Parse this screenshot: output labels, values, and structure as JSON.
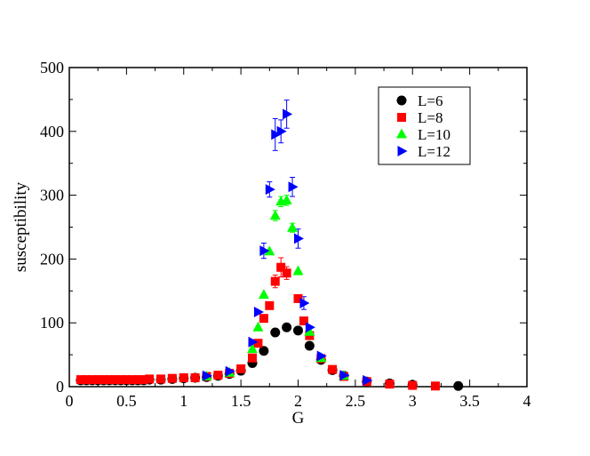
{
  "chart_data": {
    "type": "scatter",
    "title": "",
    "xlabel": "G",
    "ylabel": "susceptibility",
    "xlim": [
      0,
      4
    ],
    "ylim": [
      0,
      500
    ],
    "xticks": [
      0,
      0.5,
      1,
      1.5,
      2,
      2.5,
      3,
      3.5,
      4
    ],
    "yticks": [
      0,
      100,
      200,
      300,
      400,
      500
    ],
    "xtick_labels": [
      "0",
      "0.5",
      "1",
      "1.5",
      "2",
      "2.5",
      "3",
      "3.5",
      "4"
    ],
    "ytick_labels": [
      "0",
      "100",
      "200",
      "300",
      "400",
      "500"
    ],
    "grid": false,
    "legend_position": "top-right",
    "series": [
      {
        "name": "L=6",
        "marker": "circle",
        "color": "#000000",
        "points": [
          [
            0.1,
            10
          ],
          [
            0.15,
            10
          ],
          [
            0.2,
            10
          ],
          [
            0.25,
            10
          ],
          [
            0.3,
            10
          ],
          [
            0.35,
            10
          ],
          [
            0.4,
            10
          ],
          [
            0.45,
            10
          ],
          [
            0.5,
            10
          ],
          [
            0.55,
            10
          ],
          [
            0.6,
            10
          ],
          [
            0.65,
            10
          ],
          [
            0.7,
            11
          ],
          [
            0.8,
            11
          ],
          [
            0.9,
            12
          ],
          [
            1.0,
            13
          ],
          [
            1.1,
            14
          ],
          [
            1.2,
            15
          ],
          [
            1.3,
            17
          ],
          [
            1.4,
            20
          ],
          [
            1.5,
            25
          ],
          [
            1.6,
            37
          ],
          [
            1.7,
            56
          ],
          [
            1.8,
            85
          ],
          [
            1.9,
            93
          ],
          [
            2.0,
            88
          ],
          [
            2.1,
            64
          ],
          [
            2.2,
            42
          ],
          [
            2.3,
            26
          ],
          [
            2.4,
            17
          ],
          [
            2.6,
            8
          ],
          [
            2.8,
            5
          ],
          [
            3.0,
            3
          ],
          [
            3.4,
            1
          ]
        ]
      },
      {
        "name": "L=8",
        "marker": "square",
        "color": "#ff0000",
        "points": [
          [
            0.1,
            11
          ],
          [
            0.15,
            11
          ],
          [
            0.2,
            11
          ],
          [
            0.25,
            11
          ],
          [
            0.3,
            11
          ],
          [
            0.35,
            11
          ],
          [
            0.4,
            11
          ],
          [
            0.45,
            11
          ],
          [
            0.5,
            11
          ],
          [
            0.55,
            11
          ],
          [
            0.6,
            11
          ],
          [
            0.65,
            11
          ],
          [
            0.7,
            12
          ],
          [
            0.8,
            12
          ],
          [
            0.9,
            13
          ],
          [
            1.0,
            14
          ],
          [
            1.1,
            14
          ],
          [
            1.2,
            16
          ],
          [
            1.3,
            18
          ],
          [
            1.4,
            21
          ],
          [
            1.5,
            28
          ],
          [
            1.6,
            45
          ],
          [
            1.65,
            68
          ],
          [
            1.7,
            107
          ],
          [
            1.75,
            127
          ],
          [
            1.8,
            165
          ],
          [
            1.85,
            187
          ],
          [
            1.9,
            178
          ],
          [
            2.0,
            138
          ],
          [
            2.05,
            103
          ],
          [
            2.1,
            80
          ],
          [
            2.2,
            44
          ],
          [
            2.3,
            27
          ],
          [
            2.4,
            16
          ],
          [
            2.6,
            8
          ],
          [
            2.8,
            4
          ],
          [
            3.0,
            2
          ],
          [
            3.2,
            1
          ]
        ],
        "errors": [
          [
            1.85,
            15
          ],
          [
            1.9,
            10
          ],
          [
            1.8,
            10
          ]
        ]
      },
      {
        "name": "L=10",
        "marker": "triangle-up",
        "color": "#00ff00",
        "points": [
          [
            1.2,
            16
          ],
          [
            1.4,
            22
          ],
          [
            1.6,
            59
          ],
          [
            1.65,
            93
          ],
          [
            1.7,
            144
          ],
          [
            1.75,
            212
          ],
          [
            1.8,
            268
          ],
          [
            1.85,
            290
          ],
          [
            1.9,
            292
          ],
          [
            1.95,
            249
          ],
          [
            2.0,
            181
          ],
          [
            2.1,
            86
          ],
          [
            2.2,
            45
          ],
          [
            2.4,
            17
          ]
        ],
        "errors": [
          [
            1.8,
            8
          ],
          [
            1.85,
            8
          ],
          [
            1.9,
            8
          ],
          [
            1.95,
            7
          ]
        ]
      },
      {
        "name": "L=12",
        "marker": "triangle-right",
        "color": "#0000ff",
        "points": [
          [
            1.2,
            17
          ],
          [
            1.4,
            24
          ],
          [
            1.6,
            70
          ],
          [
            1.65,
            117
          ],
          [
            1.7,
            213
          ],
          [
            1.75,
            309
          ],
          [
            1.8,
            395
          ],
          [
            1.85,
            400
          ],
          [
            1.9,
            427
          ],
          [
            1.95,
            313
          ],
          [
            2.0,
            232
          ],
          [
            2.05,
            131
          ],
          [
            2.1,
            93
          ],
          [
            2.2,
            48
          ],
          [
            2.4,
            18
          ],
          [
            2.6,
            10
          ]
        ],
        "errors": [
          [
            1.7,
            12
          ],
          [
            1.75,
            12
          ],
          [
            1.8,
            25
          ],
          [
            1.85,
            18
          ],
          [
            1.9,
            22
          ],
          [
            1.95,
            15
          ],
          [
            2.0,
            15
          ],
          [
            2.05,
            10
          ]
        ]
      }
    ]
  }
}
